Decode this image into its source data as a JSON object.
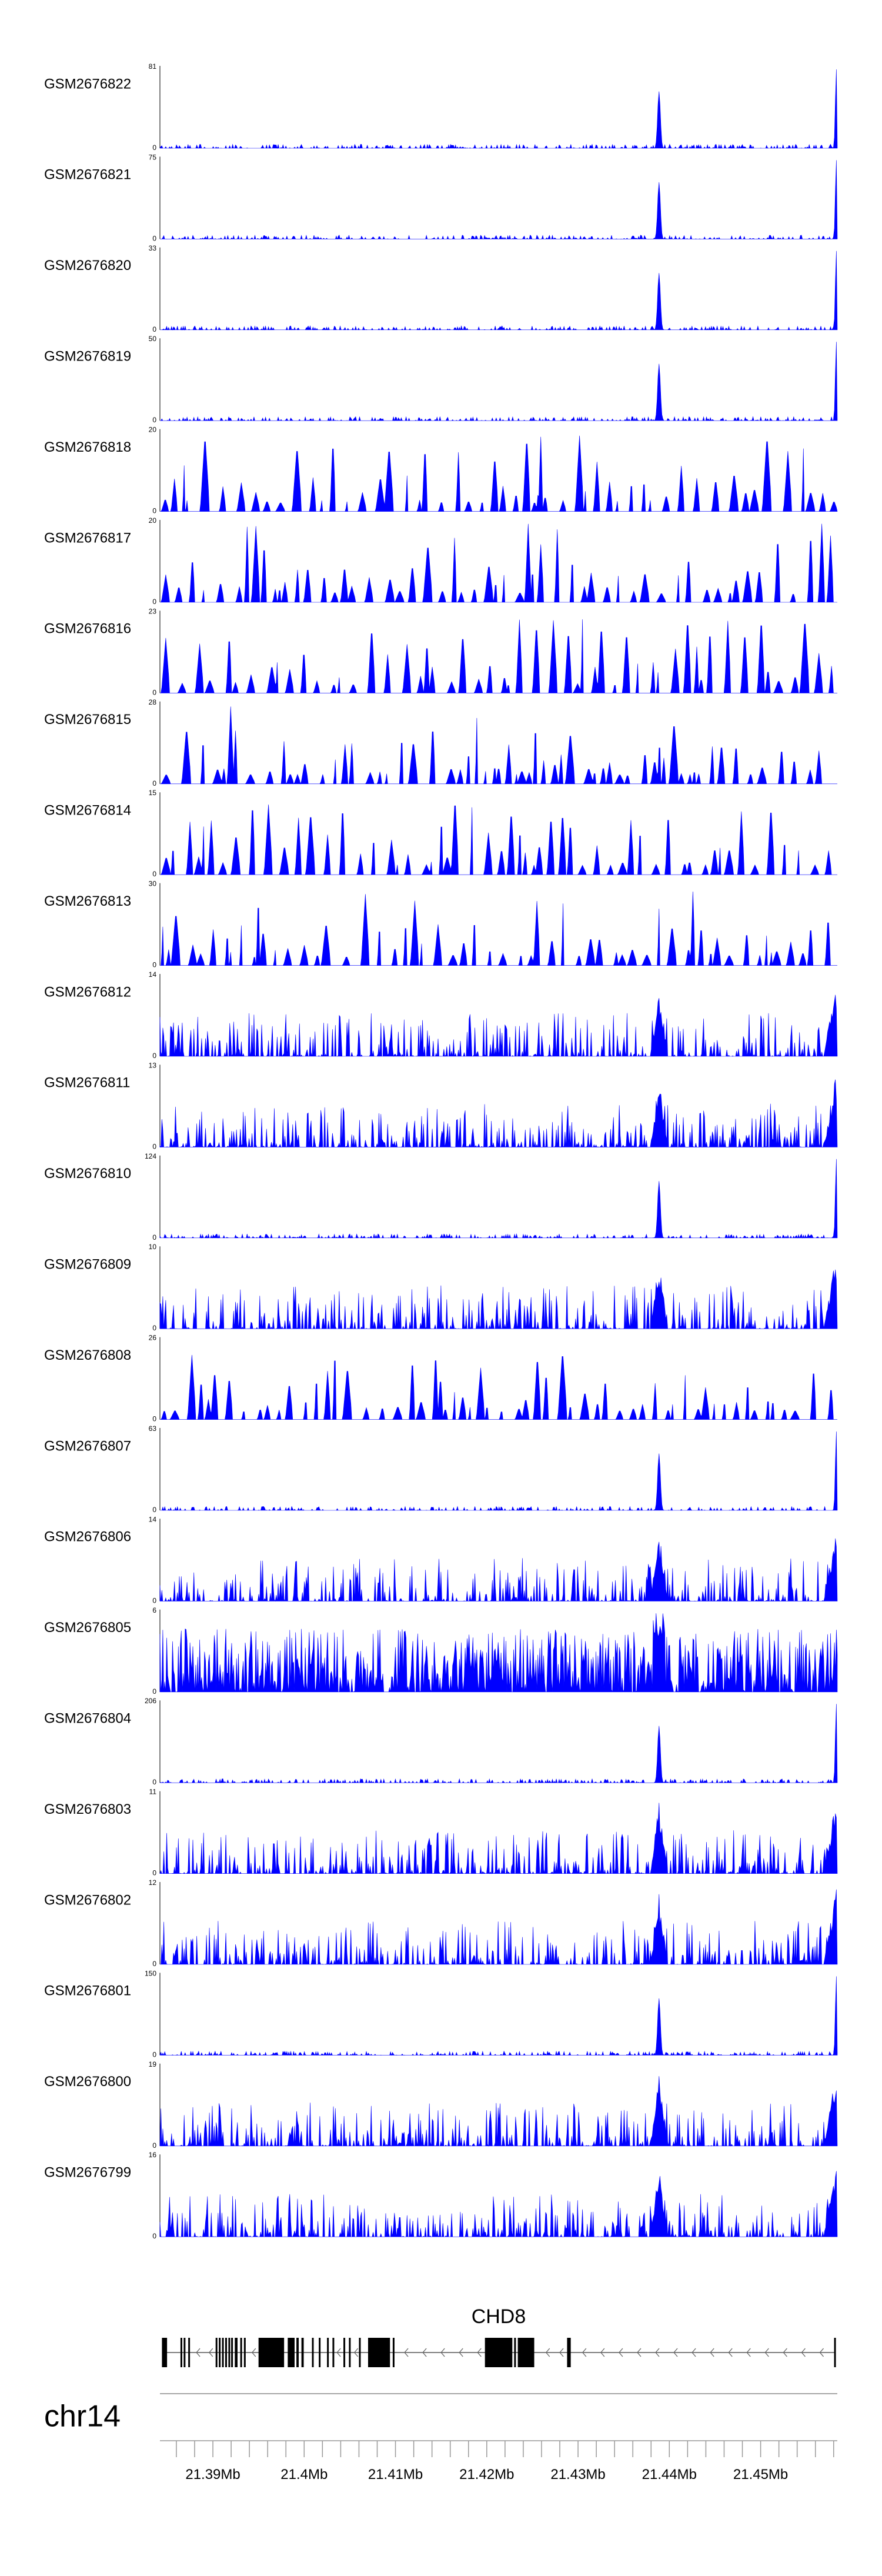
{
  "chart_data": {
    "type": "area",
    "title": "",
    "chromosome": "chr14",
    "xlim_bp": [
      21384200,
      21458400
    ],
    "x_ticks_bp": [
      21390000,
      21400000,
      21410000,
      21420000,
      21430000,
      21440000,
      21450000
    ],
    "x_tick_labels": [
      "21.39Mb",
      "21.4Mb",
      "21.41Mb",
      "21.42Mb",
      "21.43Mb",
      "21.44Mb",
      "21.45Mb"
    ],
    "color": "#0000ff",
    "tracks": [
      {
        "name": "GSM2676822",
        "ymax": "81",
        "max": 81,
        "profile": "peak"
      },
      {
        "name": "GSM2676821",
        "ymax": "75",
        "max": 75,
        "profile": "peak"
      },
      {
        "name": "GSM2676820",
        "ymax": "33",
        "max": 33,
        "profile": "peak"
      },
      {
        "name": "GSM2676819",
        "ymax": "50",
        "max": 50,
        "profile": "peak"
      },
      {
        "name": "GSM2676818",
        "ymax": "20",
        "max": 20,
        "profile": "sparse"
      },
      {
        "name": "GSM2676817",
        "ymax": "20",
        "max": 20,
        "profile": "sparse"
      },
      {
        "name": "GSM2676816",
        "ymax": "23",
        "max": 23,
        "profile": "sparse"
      },
      {
        "name": "GSM2676815",
        "ymax": "28",
        "max": 28,
        "profile": "sparse"
      },
      {
        "name": "GSM2676814",
        "ymax": "15",
        "max": 15,
        "profile": "sparse"
      },
      {
        "name": "GSM2676813",
        "ymax": "30",
        "max": 30,
        "profile": "sparse"
      },
      {
        "name": "GSM2676812",
        "ymax": "14",
        "max": 14,
        "profile": "dense"
      },
      {
        "name": "GSM2676811",
        "ymax": "13",
        "max": 13,
        "profile": "dense"
      },
      {
        "name": "GSM2676810",
        "ymax": "124",
        "max": 124,
        "profile": "peak"
      },
      {
        "name": "GSM2676809",
        "ymax": "10",
        "max": 10,
        "profile": "dense"
      },
      {
        "name": "GSM2676808",
        "ymax": "26",
        "max": 26,
        "profile": "sparse"
      },
      {
        "name": "GSM2676807",
        "ymax": "63",
        "max": 63,
        "profile": "peak"
      },
      {
        "name": "GSM2676806",
        "ymax": "14",
        "max": 14,
        "profile": "dense"
      },
      {
        "name": "GSM2676805",
        "ymax": "6",
        "max": 6,
        "profile": "noisy"
      },
      {
        "name": "GSM2676804",
        "ymax": "206",
        "max": 206,
        "profile": "peak"
      },
      {
        "name": "GSM2676803",
        "ymax": "11",
        "max": 11,
        "profile": "dense"
      },
      {
        "name": "GSM2676802",
        "ymax": "12",
        "max": 12,
        "profile": "dense"
      },
      {
        "name": "GSM2676801",
        "ymax": "150",
        "max": 150,
        "profile": "peak"
      },
      {
        "name": "GSM2676800",
        "ymax": "19",
        "max": 19,
        "profile": "dense"
      },
      {
        "name": "GSM2676799",
        "ymax": "16",
        "max": 16,
        "profile": "dense"
      }
    ],
    "y_min_label": "0",
    "gene": {
      "name": "CHD8",
      "strand": "-",
      "exons_bp": [
        [
          21384420,
          21384980
        ],
        [
          21386450,
          21386560
        ],
        [
          21386800,
          21386900
        ],
        [
          21387300,
          21387420
        ],
        [
          21390300,
          21390400
        ],
        [
          21390650,
          21390760
        ],
        [
          21391000,
          21391100
        ],
        [
          21391350,
          21391450
        ],
        [
          21391700,
          21391800
        ],
        [
          21392000,
          21392150
        ],
        [
          21392400,
          21392700
        ],
        [
          21393000,
          21393150
        ],
        [
          21393400,
          21393550
        ],
        [
          21395000,
          21397800
        ],
        [
          21398200,
          21398950
        ],
        [
          21399150,
          21399400
        ],
        [
          21399700,
          21399950
        ],
        [
          21400850,
          21401000
        ],
        [
          21401600,
          21401700
        ],
        [
          21402500,
          21402620
        ],
        [
          21403100,
          21403200
        ],
        [
          21404300,
          21404420
        ],
        [
          21404900,
          21405000
        ],
        [
          21406000,
          21406150
        ],
        [
          21407000,
          21409400
        ],
        [
          21409700,
          21409800
        ],
        [
          21419800,
          21422800
        ],
        [
          21423000,
          21423150
        ],
        [
          21423400,
          21425200
        ],
        [
          21428800,
          21429200
        ],
        [
          21458050,
          21458150
        ]
      ],
      "intron_arrows_bp": [
        21388200,
        21389600,
        21394300,
        21403600,
        21405500,
        21411000,
        21413000,
        21415000,
        21417000,
        21419000,
        21426500,
        21428000,
        21430500,
        21432500,
        21434500,
        21436500,
        21438500,
        21440500,
        21442500,
        21444500,
        21446500,
        21448500,
        21450500,
        21452500,
        21454500,
        21456500
      ]
    }
  }
}
